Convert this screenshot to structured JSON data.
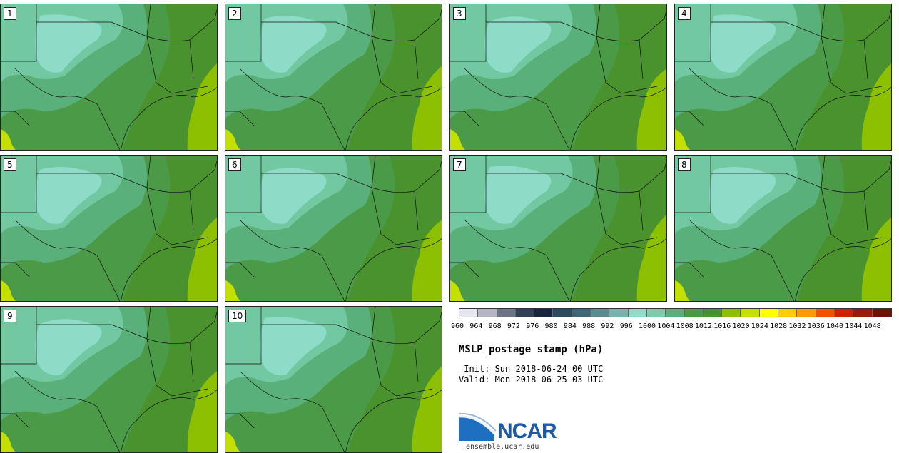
{
  "title": "MSLP postage stamp (hPa)",
  "init": " Init: Sun 2018-06-24 00 UTC",
  "valid": "Valid: Mon 2018-06-25 03 UTC",
  "logo_text": "NCAR",
  "url": "ensemble.ucar.edu",
  "members": [
    "1",
    "2",
    "3",
    "4",
    "5",
    "6",
    "7",
    "8",
    "9",
    "10"
  ],
  "colorbar": {
    "ticks": [
      "960",
      "964",
      "968",
      "972",
      "976",
      "980",
      "984",
      "988",
      "992",
      "996",
      "1000",
      "1004",
      "1008",
      "1012",
      "1016",
      "1020",
      "1024",
      "1028",
      "1032",
      "1036",
      "1040",
      "1044",
      "1048"
    ],
    "colors": [
      "#e6e6ee",
      "#b4b4c4",
      "#6e7488",
      "#344058",
      "#182540",
      "#2c4a60",
      "#3e6878",
      "#5a8c8e",
      "#76b4ac",
      "#90dcc8",
      "#7cccac",
      "#5ab07a",
      "#4a9a48",
      "#4a922e",
      "#8cc000",
      "#c4e000",
      "#ffff00",
      "#ffcc00",
      "#ff9900",
      "#f55000",
      "#cc2200",
      "#9a1a08",
      "#6e1208"
    ]
  },
  "map_colors": {
    "c1000": "#8edcc8",
    "c1004": "#72c8a0",
    "c1008": "#5ab07a",
    "c1012": "#4a9a48",
    "c1016": "#4a922e",
    "c1020": "#8cc000",
    "c1024": "#c4e000"
  }
}
